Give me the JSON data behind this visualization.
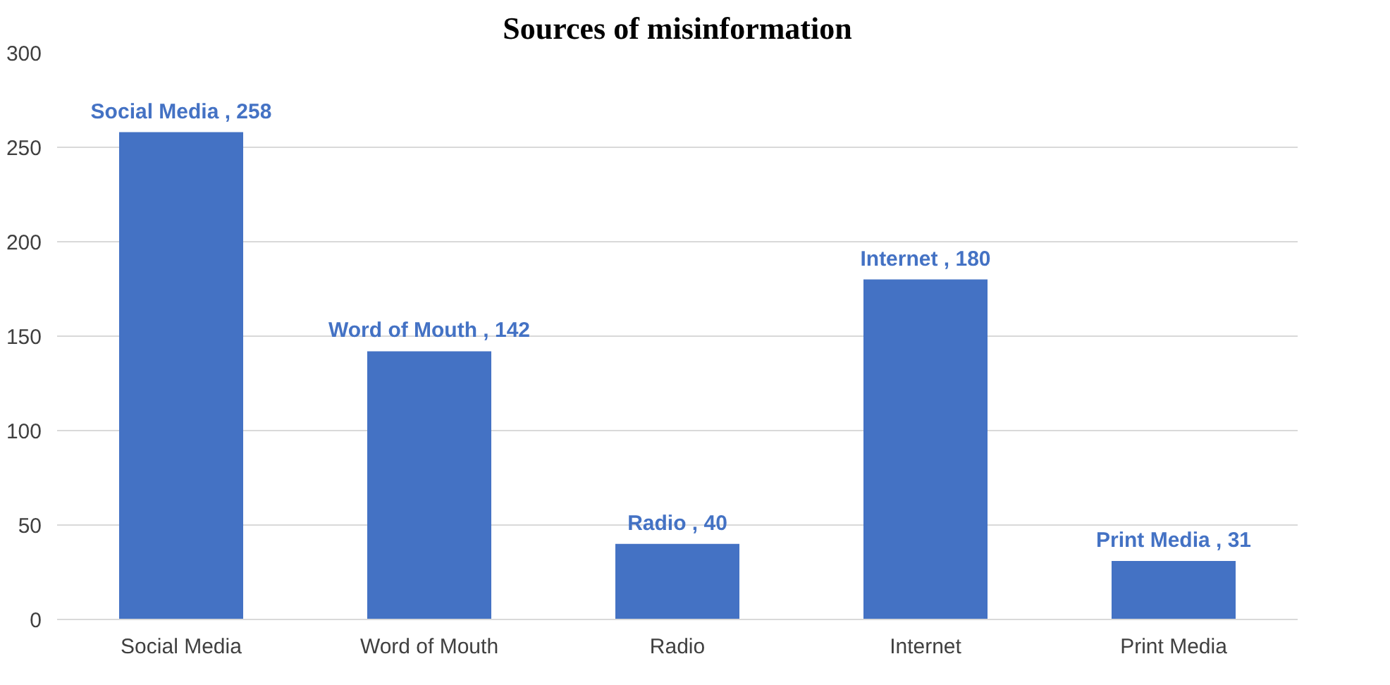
{
  "chart_data": {
    "type": "bar",
    "title": "Sources of misinformation",
    "categories": [
      "Social Media",
      "Word of Mouth",
      "Radio",
      "Internet",
      "Print Media"
    ],
    "values": [
      258,
      142,
      40,
      180,
      31
    ],
    "value_labels": [
      "Social Media , 258",
      "Word of Mouth , 142",
      "Radio , 40",
      "Internet , 180",
      "Print Media , 31"
    ],
    "color": "#4472c4",
    "ylim": [
      0,
      300
    ],
    "yticks": [
      0,
      50,
      100,
      150,
      200,
      250,
      300
    ],
    "grid": "y"
  }
}
